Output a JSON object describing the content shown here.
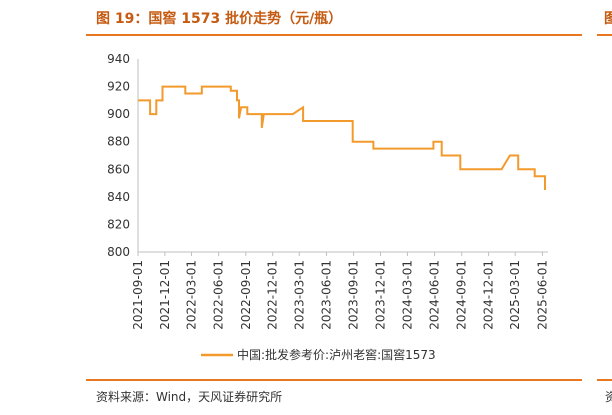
{
  "header": {
    "title": "图 19：国窖 1573 批价走势（元/瓶）",
    "right_fragment": "图"
  },
  "footer": {
    "source": "资料来源：Wind，天风证券研究所",
    "right_fragment": "资"
  },
  "colors": {
    "accent": "#e87722",
    "series": "#f39a2c",
    "title": "#c55a11"
  },
  "chart_data": {
    "type": "line",
    "step": true,
    "ylim": [
      800,
      940
    ],
    "yticks": [
      800,
      820,
      840,
      860,
      880,
      900,
      920,
      940
    ],
    "xlim": [
      "2021-09-01",
      "2025-06-20"
    ],
    "xticks": [
      "2021-09-01",
      "2021-12-01",
      "2022-03-01",
      "2022-06-01",
      "2022-09-01",
      "2022-12-01",
      "2023-03-01",
      "2023-06-01",
      "2023-09-01",
      "2023-12-01",
      "2024-03-01",
      "2024-06-01",
      "2024-09-01",
      "2024-12-01",
      "2025-03-01",
      "2025-06-01"
    ],
    "grid": false,
    "legend": "bottom",
    "series": [
      {
        "name": "中国:批发参考价:泸州老窖:国窖1573",
        "points": [
          [
            "2021-09-01",
            910
          ],
          [
            "2021-10-12",
            910
          ],
          [
            "2021-10-12",
            900
          ],
          [
            "2021-11-02",
            900
          ],
          [
            "2021-11-02",
            910
          ],
          [
            "2021-11-23",
            910
          ],
          [
            "2021-11-23",
            920
          ],
          [
            "2022-02-08",
            920
          ],
          [
            "2022-02-08",
            915
          ],
          [
            "2022-04-05",
            915
          ],
          [
            "2022-04-05",
            920
          ],
          [
            "2022-07-12",
            920
          ],
          [
            "2022-07-12",
            917
          ],
          [
            "2022-08-02",
            917
          ],
          [
            "2022-08-02",
            910
          ],
          [
            "2022-08-09",
            910
          ],
          [
            "2022-08-09",
            897
          ],
          [
            "2022-08-16",
            905
          ],
          [
            "2022-09-06",
            905
          ],
          [
            "2022-09-06",
            900
          ],
          [
            "2022-10-25",
            900
          ],
          [
            "2022-10-25",
            890
          ],
          [
            "2022-11-01",
            900
          ],
          [
            "2023-02-07",
            900
          ],
          [
            "2023-03-14",
            905
          ],
          [
            "2023-03-14",
            895
          ],
          [
            "2023-08-29",
            895
          ],
          [
            "2023-08-29",
            880
          ],
          [
            "2023-11-07",
            880
          ],
          [
            "2023-11-07",
            875
          ],
          [
            "2024-05-28",
            875
          ],
          [
            "2024-05-28",
            880
          ],
          [
            "2024-06-25",
            880
          ],
          [
            "2024-06-25",
            870
          ],
          [
            "2024-08-27",
            870
          ],
          [
            "2024-08-27",
            860
          ],
          [
            "2025-01-14",
            860
          ],
          [
            "2025-02-11",
            870
          ],
          [
            "2025-03-11",
            870
          ],
          [
            "2025-03-11",
            860
          ],
          [
            "2025-05-06",
            860
          ],
          [
            "2025-05-06",
            855
          ],
          [
            "2025-06-10",
            855
          ],
          [
            "2025-06-10",
            845
          ]
        ]
      }
    ]
  }
}
